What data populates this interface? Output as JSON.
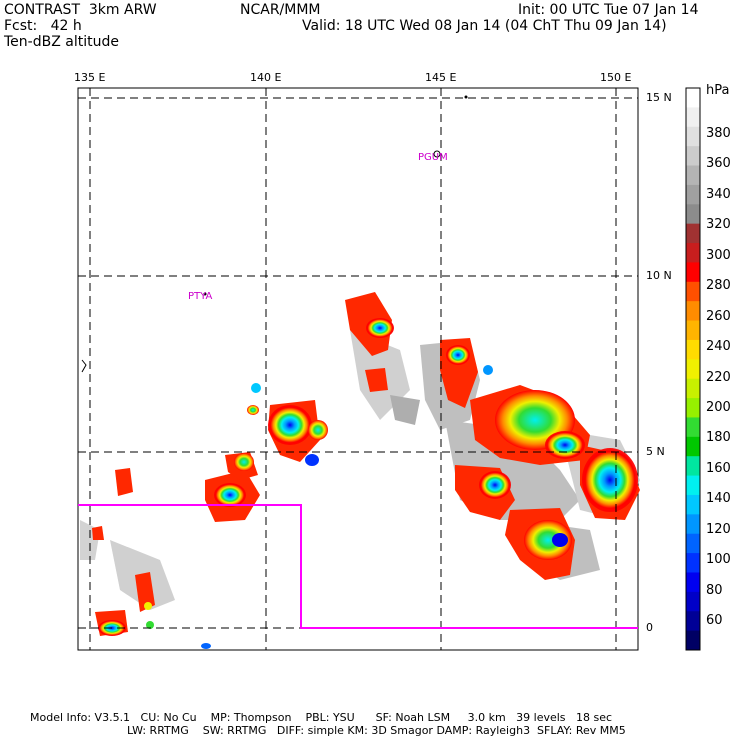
{
  "header": {
    "title": "CONTRAST  3km ARW",
    "center": "NCAR/MMM",
    "init": "Init: 00 UTC Tue 07 Jan 14",
    "fcst": "Fcst:   42 h",
    "valid": "Valid: 18 UTC Wed 08 Jan 14 (04 ChT Thu 09 Jan 14)",
    "field": "Ten-dBZ altitude"
  },
  "map": {
    "lon_labels": [
      "135 E",
      "140 E",
      "145 E",
      "150 E"
    ],
    "lat_labels": [
      "15 N",
      "10 N",
      "5 N",
      "0"
    ],
    "places": [
      "PGUM",
      "PTYA"
    ],
    "border_color": "#ff00ff"
  },
  "colorbar": {
    "unit": "hPa",
    "labels": [
      "380",
      "360",
      "340",
      "320",
      "300",
      "280",
      "260",
      "240",
      "220",
      "200",
      "180",
      "160",
      "140",
      "120",
      "100",
      "80",
      "60"
    ],
    "colors": [
      "#ffffff",
      "#f0f0f0",
      "#e0e0e0",
      "#cccccc",
      "#b4b4b4",
      "#a0a0a0",
      "#8c8c8c",
      "#a03232",
      "#c81e1e",
      "#ff0000",
      "#ff5000",
      "#ff8c00",
      "#ffb400",
      "#ffdc00",
      "#f0f000",
      "#c8f000",
      "#96f000",
      "#32dc32",
      "#00c800",
      "#00e6a0",
      "#00f0f0",
      "#00c8ff",
      "#0096ff",
      "#0064ff",
      "#0032ff",
      "#0000f0",
      "#0000c8",
      "#000096",
      "#000064"
    ]
  },
  "footer": {
    "line1": "Model Info: V3.5.1   CU: No Cu    MP: Thompson    PBL: YSU      SF: Noah LSM     3.0 km   39 levels   18 sec",
    "line2": "LW: RRTMG    SW: RRTMG   DIFF: simple KM: 3D Smagor DAMP: Rayleigh3  SFLAY: Rev MM5"
  }
}
